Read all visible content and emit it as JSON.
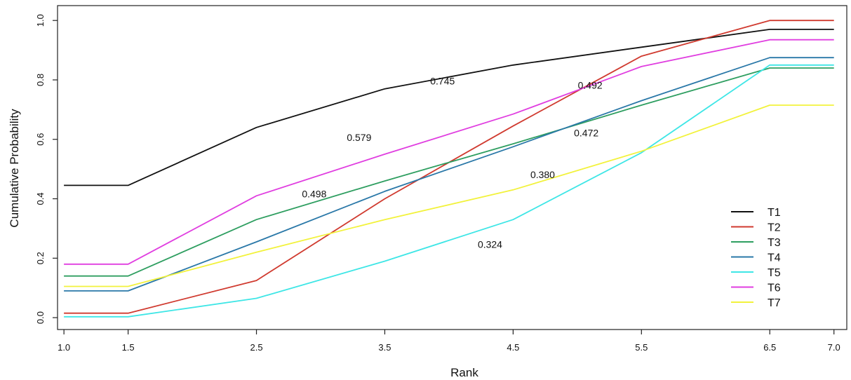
{
  "chart_data": {
    "type": "line",
    "xlabel": "Rank",
    "ylabel": "Cumulative Probability",
    "x": [
      1.0,
      1.5,
      2.5,
      3.5,
      4.5,
      5.5,
      6.5,
      7.0
    ],
    "x_tick_labels": [
      "1.0",
      "1.5",
      "2.5",
      "3.5",
      "4.5",
      "5.5",
      "6.5",
      "7.0"
    ],
    "y_ticks": [
      0.0,
      0.2,
      0.4,
      0.6,
      0.8,
      1.0
    ],
    "y_tick_labels": [
      "0.0",
      "0.2",
      "0.4",
      "0.6",
      "0.8",
      "1.0"
    ],
    "xlim": [
      0.95,
      7.1
    ],
    "ylim": [
      -0.04,
      1.05
    ],
    "grid": false,
    "legend_position": "bottom-right",
    "series": [
      {
        "name": "T1",
        "color": "#111111",
        "values": [
          0.445,
          0.445,
          0.64,
          0.77,
          0.85,
          0.91,
          0.97,
          0.97
        ]
      },
      {
        "name": "T2",
        "color": "#d03a2f",
        "values": [
          0.015,
          0.015,
          0.125,
          0.4,
          0.645,
          0.88,
          1.0,
          1.0
        ]
      },
      {
        "name": "T3",
        "color": "#2e9e60",
        "values": [
          0.14,
          0.14,
          0.33,
          0.46,
          0.585,
          0.715,
          0.84,
          0.84
        ]
      },
      {
        "name": "T4",
        "color": "#2a78a8",
        "values": [
          0.09,
          0.09,
          0.255,
          0.425,
          0.575,
          0.73,
          0.875,
          0.875
        ]
      },
      {
        "name": "T5",
        "color": "#3ee6e6",
        "values": [
          0.003,
          0.003,
          0.065,
          0.19,
          0.33,
          0.555,
          0.85,
          0.85
        ]
      },
      {
        "name": "T6",
        "color": "#e03ee0",
        "values": [
          0.18,
          0.18,
          0.41,
          0.55,
          0.685,
          0.845,
          0.935,
          0.935
        ]
      },
      {
        "name": "T7",
        "color": "#f2f23c",
        "values": [
          0.105,
          0.105,
          0.22,
          0.33,
          0.43,
          0.56,
          0.715,
          0.715
        ]
      }
    ],
    "annotations": [
      {
        "text": "0.745",
        "x": 3.95,
        "y": 0.785
      },
      {
        "text": "0.492",
        "x": 5.1,
        "y": 0.77
      },
      {
        "text": "0.579",
        "x": 3.3,
        "y": 0.595
      },
      {
        "text": "0.472",
        "x": 5.07,
        "y": 0.61
      },
      {
        "text": "0.498",
        "x": 2.95,
        "y": 0.405
      },
      {
        "text": "0.380",
        "x": 4.73,
        "y": 0.47
      },
      {
        "text": "0.324",
        "x": 4.32,
        "y": 0.235
      }
    ]
  }
}
